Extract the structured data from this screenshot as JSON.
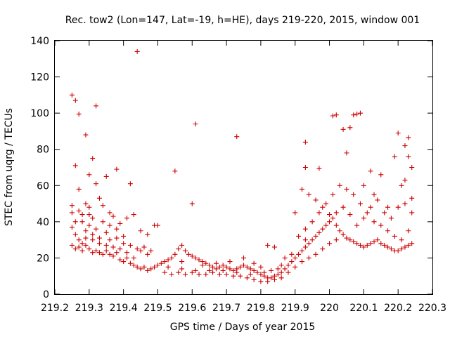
{
  "chart_data": {
    "type": "scatter",
    "title": "Rec. tow2 (Lon=147, Lat=-19, h=HE), days 219-220, 2015, window 001",
    "xlabel": "GPS time / Days of year 2015",
    "ylabel": "STEC from uqrg / TECUs",
    "xlim": [
      219.2,
      220.3
    ],
    "ylim": [
      0,
      140
    ],
    "xticks": [
      219.2,
      219.3,
      219.4,
      219.5,
      219.6,
      219.7,
      219.8,
      219.9,
      220.0,
      220.1,
      220.2,
      220.3
    ],
    "xtick_labels": [
      "219.2",
      "219.3",
      "219.4",
      "219.5",
      "219.6",
      "219.7",
      "219.8",
      "219.9",
      "220",
      "220.1",
      "220.2",
      "220.3"
    ],
    "yticks": [
      0,
      20,
      40,
      60,
      80,
      100,
      120,
      140
    ],
    "ytick_labels": [
      "0",
      "20",
      "40",
      "60",
      "80",
      "100",
      "120",
      "140"
    ],
    "grid": false,
    "legend": "none",
    "marker": "plus",
    "color": "#cc0000",
    "series": [
      {
        "points": [
          [
            219.25,
            110
          ],
          [
            219.26,
            107
          ],
          [
            219.27,
            99.5
          ],
          [
            219.29,
            88
          ],
          [
            219.31,
            75
          ],
          [
            219.32,
            104
          ],
          [
            219.26,
            71
          ],
          [
            219.27,
            58
          ],
          [
            219.3,
            66
          ],
          [
            219.32,
            61
          ],
          [
            219.35,
            65
          ],
          [
            219.38,
            69
          ],
          [
            219.44,
            134
          ],
          [
            219.42,
            61
          ],
          [
            219.55,
            68
          ],
          [
            219.61,
            94
          ],
          [
            219.6,
            50
          ],
          [
            219.73,
            87
          ],
          [
            219.82,
            27
          ],
          [
            219.84,
            26
          ],
          [
            219.93,
            84
          ],
          [
            219.93,
            70
          ],
          [
            219.97,
            69.5
          ],
          [
            220.01,
            98.5
          ],
          [
            220.02,
            99
          ],
          [
            220.04,
            91
          ],
          [
            220.05,
            78
          ],
          [
            220.06,
            92
          ],
          [
            220.07,
            99
          ],
          [
            220.08,
            99.5
          ],
          [
            220.09,
            100
          ],
          [
            220.12,
            68
          ],
          [
            220.15,
            66
          ],
          [
            220.2,
            89
          ],
          [
            220.22,
            82
          ],
          [
            220.23,
            86.5
          ],
          [
            220.19,
            76
          ],
          [
            220.23,
            76
          ],
          [
            220.24,
            70
          ],
          [
            219.25,
            49
          ],
          [
            219.25,
            45
          ],
          [
            219.26,
            40
          ],
          [
            219.27,
            46
          ],
          [
            219.28,
            44
          ],
          [
            219.29,
            50
          ],
          [
            219.3,
            48
          ],
          [
            219.31,
            42
          ],
          [
            219.33,
            53
          ],
          [
            219.34,
            49
          ],
          [
            219.36,
            45
          ],
          [
            219.37,
            43
          ],
          [
            219.39,
            39
          ],
          [
            219.41,
            42
          ],
          [
            219.43,
            44
          ],
          [
            219.45,
            35
          ],
          [
            219.47,
            33
          ],
          [
            219.49,
            38
          ],
          [
            219.5,
            38
          ],
          [
            219.25,
            37
          ],
          [
            219.26,
            33
          ],
          [
            219.27,
            30
          ],
          [
            219.28,
            28
          ],
          [
            219.29,
            35
          ],
          [
            219.3,
            38
          ],
          [
            219.31,
            33
          ],
          [
            219.32,
            36
          ],
          [
            219.33,
            31
          ],
          [
            219.35,
            34
          ],
          [
            219.36,
            30
          ],
          [
            219.38,
            31
          ],
          [
            219.4,
            28
          ],
          [
            219.42,
            27
          ],
          [
            219.44,
            25
          ],
          [
            219.46,
            26
          ],
          [
            219.48,
            24
          ],
          [
            219.25,
            27
          ],
          [
            219.26,
            25
          ],
          [
            219.27,
            26
          ],
          [
            219.28,
            24
          ],
          [
            219.29,
            27
          ],
          [
            219.3,
            25
          ],
          [
            219.31,
            23
          ],
          [
            219.32,
            24
          ],
          [
            219.33,
            23
          ],
          [
            219.34,
            22
          ],
          [
            219.35,
            24
          ],
          [
            219.36,
            22
          ],
          [
            219.37,
            21
          ],
          [
            219.38,
            23
          ],
          [
            219.39,
            19
          ],
          [
            219.4,
            18
          ],
          [
            219.41,
            20
          ],
          [
            219.42,
            17
          ],
          [
            219.43,
            16
          ],
          [
            219.44,
            15
          ],
          [
            219.45,
            14
          ],
          [
            219.46,
            15
          ],
          [
            219.47,
            13
          ],
          [
            219.48,
            14
          ],
          [
            219.49,
            15
          ],
          [
            219.5,
            16
          ],
          [
            219.51,
            17
          ],
          [
            219.52,
            18
          ],
          [
            219.53,
            19
          ],
          [
            219.54,
            20
          ],
          [
            219.55,
            22
          ],
          [
            219.56,
            25
          ],
          [
            219.57,
            27
          ],
          [
            219.58,
            24
          ],
          [
            219.59,
            22
          ],
          [
            219.6,
            21
          ],
          [
            219.61,
            20
          ],
          [
            219.62,
            19
          ],
          [
            219.63,
            18
          ],
          [
            219.64,
            17
          ],
          [
            219.65,
            16
          ],
          [
            219.66,
            15
          ],
          [
            219.67,
            14
          ],
          [
            219.68,
            15
          ],
          [
            219.69,
            16
          ],
          [
            219.7,
            15
          ],
          [
            219.71,
            14
          ],
          [
            219.72,
            13
          ],
          [
            219.73,
            14
          ],
          [
            219.74,
            15
          ],
          [
            219.75,
            16
          ],
          [
            219.76,
            15
          ],
          [
            219.77,
            14
          ],
          [
            219.78,
            13
          ],
          [
            219.79,
            12
          ],
          [
            219.8,
            11
          ],
          [
            219.81,
            10
          ],
          [
            219.82,
            9
          ],
          [
            219.83,
            9
          ],
          [
            219.84,
            10
          ],
          [
            219.85,
            11
          ],
          [
            219.86,
            12
          ],
          [
            219.87,
            14
          ],
          [
            219.88,
            16
          ],
          [
            219.89,
            18
          ],
          [
            219.9,
            20
          ],
          [
            219.91,
            22
          ],
          [
            219.92,
            24
          ],
          [
            219.93,
            26
          ],
          [
            219.94,
            28
          ],
          [
            219.95,
            30
          ],
          [
            219.96,
            32
          ],
          [
            219.97,
            34
          ],
          [
            219.98,
            36
          ],
          [
            219.99,
            38
          ],
          [
            220.0,
            40
          ],
          [
            220.01,
            42
          ],
          [
            220.02,
            38
          ],
          [
            220.03,
            35
          ],
          [
            220.04,
            33
          ],
          [
            220.05,
            31
          ],
          [
            220.06,
            30
          ],
          [
            220.07,
            29
          ],
          [
            220.08,
            28
          ],
          [
            220.09,
            27
          ],
          [
            220.1,
            26
          ],
          [
            220.11,
            27
          ],
          [
            220.12,
            28
          ],
          [
            220.13,
            29
          ],
          [
            220.14,
            30
          ],
          [
            220.15,
            28
          ],
          [
            220.16,
            27
          ],
          [
            220.17,
            26
          ],
          [
            220.18,
            25
          ],
          [
            220.19,
            24
          ],
          [
            220.2,
            24
          ],
          [
            220.21,
            25
          ],
          [
            220.22,
            26
          ],
          [
            220.23,
            27
          ],
          [
            220.24,
            28
          ],
          [
            219.52,
            12
          ],
          [
            219.54,
            11
          ],
          [
            219.56,
            12
          ],
          [
            219.58,
            11
          ],
          [
            219.6,
            12
          ],
          [
            219.62,
            11
          ],
          [
            219.64,
            11
          ],
          [
            219.66,
            12
          ],
          [
            219.68,
            11
          ],
          [
            219.7,
            11
          ],
          [
            219.72,
            10
          ],
          [
            219.74,
            10
          ],
          [
            219.76,
            9
          ],
          [
            219.78,
            8
          ],
          [
            219.8,
            7
          ],
          [
            219.82,
            7
          ],
          [
            219.84,
            8
          ],
          [
            219.86,
            9
          ],
          [
            219.88,
            12
          ],
          [
            219.9,
            15
          ],
          [
            219.92,
            18
          ],
          [
            219.94,
            20
          ],
          [
            219.96,
            22
          ],
          [
            219.98,
            25
          ],
          [
            220.0,
            28
          ],
          [
            220.02,
            30
          ],
          [
            219.53,
            15
          ],
          [
            219.57,
            14
          ],
          [
            219.61,
            13
          ],
          [
            219.65,
            13
          ],
          [
            219.69,
            13
          ],
          [
            219.73,
            12
          ],
          [
            219.77,
            11
          ],
          [
            219.81,
            12
          ],
          [
            219.85,
            14
          ],
          [
            219.89,
            22
          ],
          [
            219.93,
            30
          ],
          [
            219.95,
            40
          ],
          [
            219.97,
            45
          ],
          [
            219.99,
            50
          ],
          [
            220.01,
            55
          ],
          [
            220.03,
            60
          ],
          [
            220.05,
            58
          ],
          [
            220.07,
            55
          ],
          [
            220.09,
            50
          ],
          [
            220.11,
            45
          ],
          [
            220.13,
            40
          ],
          [
            220.15,
            38
          ],
          [
            220.17,
            35
          ],
          [
            220.19,
            32
          ],
          [
            220.21,
            30
          ],
          [
            220.23,
            35
          ],
          [
            220.24,
            45
          ],
          [
            220.22,
            50
          ],
          [
            220.2,
            48
          ],
          [
            220.18,
            42
          ],
          [
            220.16,
            45
          ],
          [
            220.14,
            52
          ],
          [
            220.12,
            48
          ],
          [
            220.1,
            42
          ],
          [
            220.08,
            38
          ],
          [
            220.06,
            44
          ],
          [
            220.04,
            48
          ],
          [
            220.02,
            45
          ],
          [
            220.0,
            44
          ],
          [
            219.98,
            48
          ],
          [
            219.96,
            52
          ],
          [
            219.94,
            55
          ],
          [
            219.92,
            58
          ],
          [
            219.9,
            45
          ],
          [
            219.91,
            32
          ],
          [
            219.93,
            36
          ],
          [
            220.1,
            60
          ],
          [
            220.13,
            55
          ],
          [
            220.17,
            48
          ],
          [
            220.21,
            60
          ],
          [
            220.24,
            53
          ],
          [
            220.22,
            63
          ],
          [
            219.47,
            22
          ],
          [
            219.45,
            24
          ],
          [
            219.43,
            20
          ],
          [
            219.41,
            23
          ],
          [
            219.39,
            25
          ],
          [
            219.37,
            26
          ],
          [
            219.35,
            27
          ],
          [
            219.33,
            28
          ],
          [
            219.31,
            30
          ],
          [
            219.29,
            31
          ],
          [
            219.28,
            40
          ],
          [
            219.3,
            44
          ],
          [
            219.34,
            40
          ],
          [
            219.36,
            38
          ],
          [
            219.38,
            36
          ],
          [
            219.4,
            32
          ],
          [
            219.57,
            18
          ],
          [
            219.63,
            16
          ],
          [
            219.67,
            17
          ],
          [
            219.71,
            18
          ],
          [
            219.75,
            20
          ],
          [
            219.78,
            17
          ],
          [
            219.8,
            15
          ],
          [
            219.83,
            13
          ],
          [
            219.86,
            16
          ],
          [
            219.87,
            20
          ]
        ]
      }
    ]
  }
}
